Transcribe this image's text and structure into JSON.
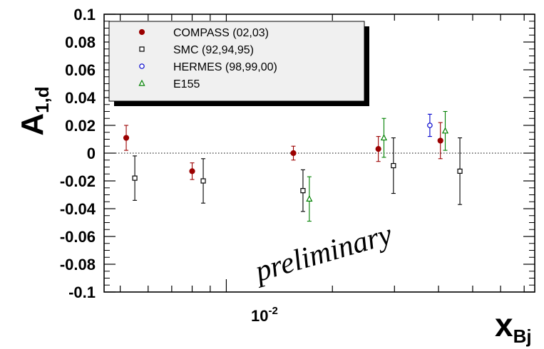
{
  "chart_data": {
    "type": "scatter",
    "xlabel": {
      "main": "x",
      "sub": "Bj"
    },
    "ylabel": {
      "main": "A",
      "sub": "1,d"
    },
    "xscale": "log",
    "xlim": [
      0.0045,
      0.075
    ],
    "ylim": [
      -0.1,
      0.1
    ],
    "yticks": [
      "0.1",
      "0.08",
      "0.06",
      "0.04",
      "0.02",
      "0",
      "-0.02",
      "-0.04",
      "-0.06",
      "-0.08",
      "-0.1"
    ],
    "xtick_label": {
      "base": "10",
      "exp": "-2"
    },
    "annotation": "preliminary",
    "legend_position": "top-left",
    "grid": false,
    "series": [
      {
        "name": "COMPASS (02,03)",
        "color": "#9b0000",
        "marker": "filled-circle",
        "points": [
          {
            "x": 0.0052,
            "y": 0.011,
            "err": 0.009
          },
          {
            "x": 0.008,
            "y": -0.013,
            "err": 0.006
          },
          {
            "x": 0.0155,
            "y": 0.0,
            "err": 0.005
          },
          {
            "x": 0.027,
            "y": 0.003,
            "err": 0.009
          },
          {
            "x": 0.0405,
            "y": 0.009,
            "err": 0.013
          }
        ]
      },
      {
        "name": "SMC (92,94,95)",
        "color": "#000000",
        "marker": "open-square",
        "points": [
          {
            "x": 0.0055,
            "y": -0.018,
            "err": 0.016
          },
          {
            "x": 0.0086,
            "y": -0.02,
            "err": 0.016
          },
          {
            "x": 0.0165,
            "y": -0.027,
            "err": 0.015
          },
          {
            "x": 0.0298,
            "y": -0.009,
            "err": 0.02
          },
          {
            "x": 0.046,
            "y": -0.013,
            "err": 0.024
          }
        ]
      },
      {
        "name": "HERMES (98,99,00)",
        "color": "#0000cc",
        "marker": "open-circle",
        "points": [
          {
            "x": 0.0378,
            "y": 0.02,
            "err": 0.008
          }
        ]
      },
      {
        "name": "E155",
        "color": "#008000",
        "marker": "open-triangle",
        "points": [
          {
            "x": 0.0172,
            "y": -0.033,
            "err": 0.016
          },
          {
            "x": 0.028,
            "y": 0.011,
            "err": 0.014
          },
          {
            "x": 0.0418,
            "y": 0.016,
            "err": 0.014
          }
        ]
      }
    ]
  }
}
